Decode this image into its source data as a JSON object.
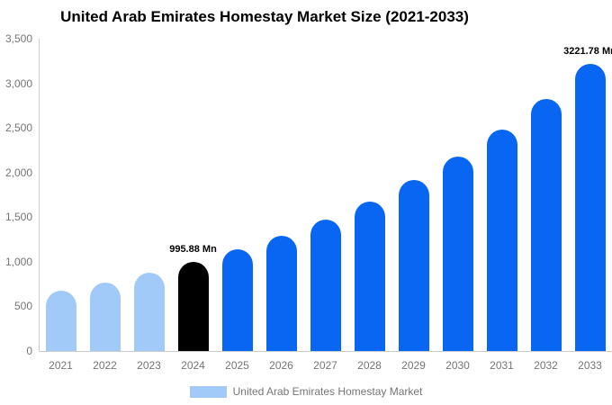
{
  "chart_data": {
    "type": "bar",
    "title": "United Arab Emirates Homestay Market Size (2021-2033)",
    "categories": [
      "2021",
      "2022",
      "2023",
      "2024",
      "2025",
      "2026",
      "2027",
      "2028",
      "2029",
      "2030",
      "2031",
      "2032",
      "2033"
    ],
    "values": [
      673,
      767,
      874,
      995.88,
      1135,
      1293,
      1473,
      1678,
      1912,
      2179,
      2483,
      2829,
      3221.78
    ],
    "bar_colors": [
      "#A1CAF9",
      "#A1CAF9",
      "#A1CAF9",
      "#000000",
      "#0866F2",
      "#0866F2",
      "#0866F2",
      "#0866F2",
      "#0866F2",
      "#0866F2",
      "#0866F2",
      "#0866F2",
      "#0866F2"
    ],
    "annotations": [
      {
        "index": 3,
        "text": "995.88 Mn"
      },
      {
        "index": 12,
        "text": "3221.78 Mn"
      }
    ],
    "xlabel": "",
    "ylabel": "",
    "ylim": [
      0,
      3500
    ],
    "ytick_labels": [
      "0",
      "500",
      "1,000",
      "1,500",
      "2,000",
      "2,500",
      "3,000",
      "3,500"
    ],
    "grid": false,
    "legend": {
      "position": "bottom",
      "label": "United Arab Emirates Homestay Market",
      "swatch_color": "#A1CAF9"
    },
    "axis_color": "#CCCCCC",
    "tick_label_color": "#757575"
  }
}
